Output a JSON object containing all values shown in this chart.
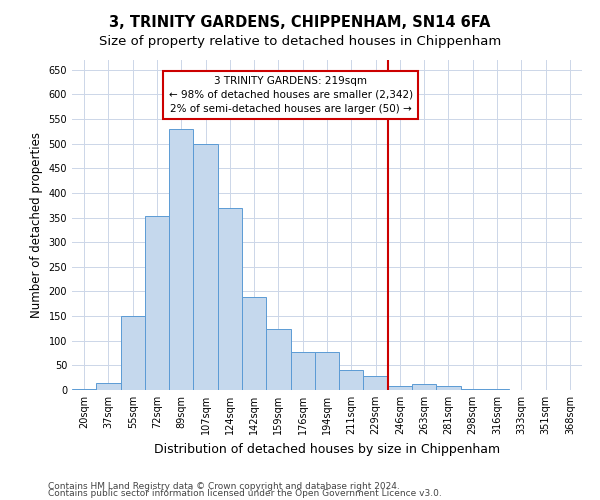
{
  "title": "3, TRINITY GARDENS, CHIPPENHAM, SN14 6FA",
  "subtitle": "Size of property relative to detached houses in Chippenham",
  "xlabel": "Distribution of detached houses by size in Chippenham",
  "ylabel": "Number of detached properties",
  "categories": [
    "20sqm",
    "37sqm",
    "55sqm",
    "72sqm",
    "89sqm",
    "107sqm",
    "124sqm",
    "142sqm",
    "159sqm",
    "176sqm",
    "194sqm",
    "211sqm",
    "229sqm",
    "246sqm",
    "263sqm",
    "281sqm",
    "298sqm",
    "316sqm",
    "333sqm",
    "351sqm",
    "368sqm"
  ],
  "values": [
    3,
    15,
    150,
    353,
    530,
    500,
    370,
    188,
    123,
    77,
    77,
    40,
    28,
    8,
    12,
    8,
    3,
    2,
    1,
    1,
    0
  ],
  "bar_color": "#c5d8ed",
  "bar_edge_color": "#5b9bd5",
  "vline_index": 12.5,
  "vline_color": "#cc0000",
  "annotation_text": "3 TRINITY GARDENS: 219sqm\n← 98% of detached houses are smaller (2,342)\n2% of semi-detached houses are larger (50) →",
  "annotation_box_color": "#ffffff",
  "annotation_box_edge_color": "#cc0000",
  "ylim": [
    0,
    670
  ],
  "yticks": [
    0,
    50,
    100,
    150,
    200,
    250,
    300,
    350,
    400,
    450,
    500,
    550,
    600,
    650
  ],
  "footer1": "Contains HM Land Registry data © Crown copyright and database right 2024.",
  "footer2": "Contains public sector information licensed under the Open Government Licence v3.0.",
  "bg_color": "#ffffff",
  "grid_color": "#ccd6e8",
  "title_fontsize": 10.5,
  "subtitle_fontsize": 9.5,
  "tick_fontsize": 7,
  "ylabel_fontsize": 8.5,
  "xlabel_fontsize": 9,
  "footer_fontsize": 6.5,
  "annotation_fontsize": 7.5
}
